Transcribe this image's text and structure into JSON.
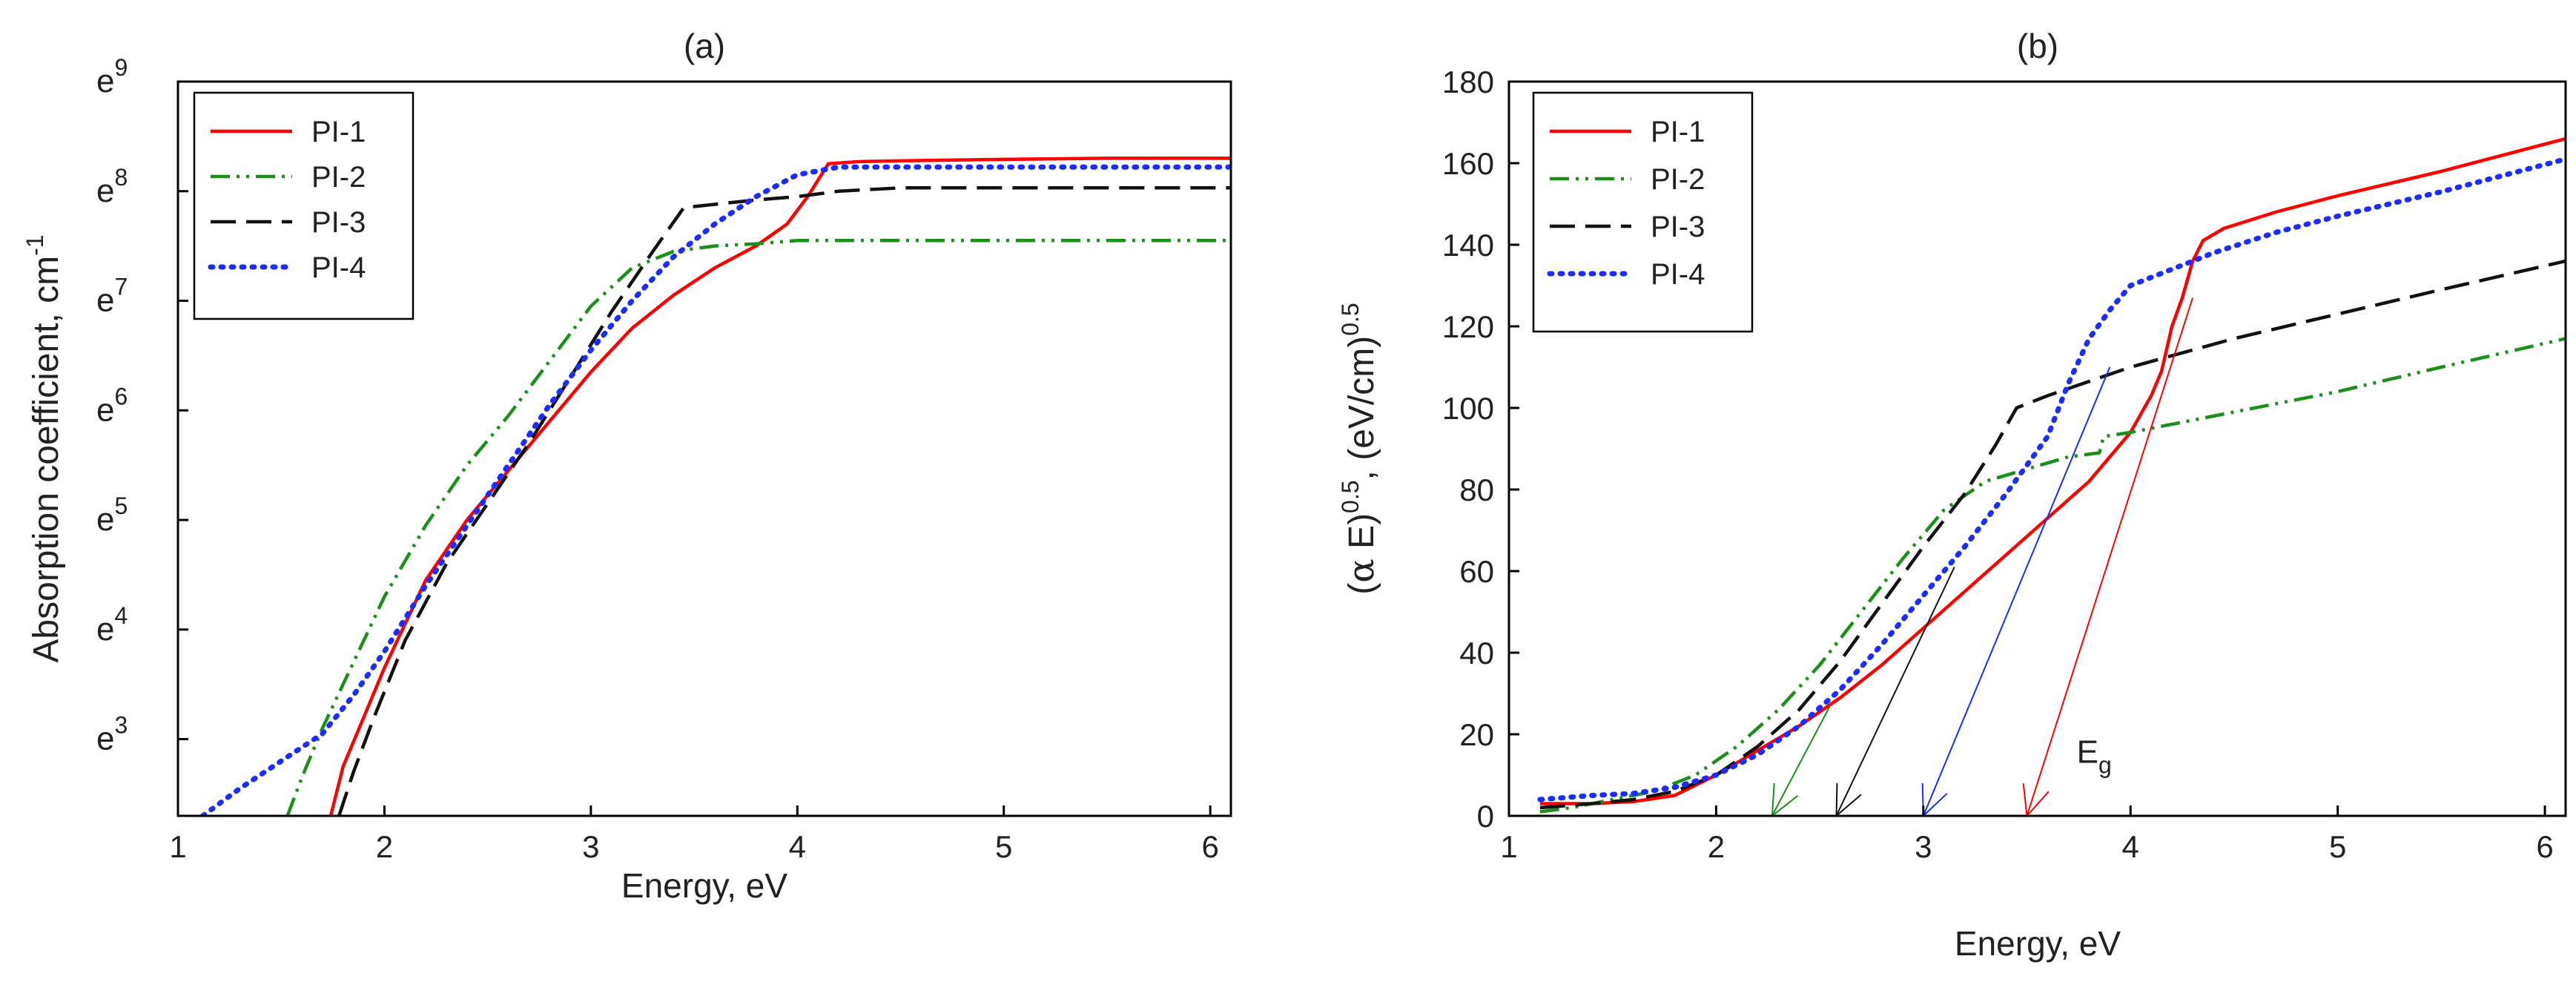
{
  "colors": {
    "pi1": "#ff0000",
    "pi2": "#1a8f1a",
    "pi3": "#111111",
    "pi4": "#1a2cff",
    "axis": "#000000"
  },
  "chart_data": [
    {
      "type": "line",
      "title": "(a)",
      "xlabel": "Energy, eV",
      "ylabel_main": "Absorption coefficient, cm",
      "ylabel_sup": "-1",
      "xlim": [
        1,
        6.1
      ],
      "ylim": [
        2.3,
        9
      ],
      "xticks": [
        1,
        2,
        3,
        4,
        5,
        6
      ],
      "xtick_labels": [
        "1",
        "2",
        "3",
        "4",
        "5",
        "6"
      ],
      "yticks": [
        3,
        4,
        5,
        6,
        7,
        8,
        9
      ],
      "ytick_base": "e",
      "ytick_exps": [
        "3",
        "4",
        "5",
        "6",
        "7",
        "8",
        "9"
      ],
      "legend_position": "top-left",
      "series": [
        {
          "name": "PI-1",
          "color_key": "pi1",
          "dash": "solid",
          "points": [
            [
              1.74,
              2.3
            ],
            [
              1.8,
              2.75
            ],
            [
              1.9,
              3.2
            ],
            [
              2.0,
              3.65
            ],
            [
              2.1,
              4.05
            ],
            [
              2.2,
              4.45
            ],
            [
              2.4,
              5.0
            ],
            [
              2.6,
              5.45
            ],
            [
              2.8,
              5.9
            ],
            [
              3.0,
              6.35
            ],
            [
              3.2,
              6.75
            ],
            [
              3.4,
              7.05
            ],
            [
              3.6,
              7.3
            ],
            [
              3.8,
              7.5
            ],
            [
              3.95,
              7.7
            ],
            [
              4.05,
              7.95
            ],
            [
              4.1,
              8.1
            ],
            [
              4.15,
              8.25
            ],
            [
              4.3,
              8.27
            ],
            [
              4.6,
              8.28
            ],
            [
              5.0,
              8.29
            ],
            [
              5.5,
              8.3
            ],
            [
              6.1,
              8.3
            ]
          ]
        },
        {
          "name": "PI-2",
          "color_key": "pi2",
          "dash": "dashdotdot",
          "points": [
            [
              1.53,
              2.3
            ],
            [
              1.6,
              2.65
            ],
            [
              1.7,
              3.1
            ],
            [
              1.8,
              3.5
            ],
            [
              1.9,
              3.9
            ],
            [
              2.0,
              4.3
            ],
            [
              2.2,
              4.95
            ],
            [
              2.4,
              5.5
            ],
            [
              2.6,
              5.95
            ],
            [
              2.8,
              6.45
            ],
            [
              3.0,
              6.95
            ],
            [
              3.2,
              7.3
            ],
            [
              3.4,
              7.45
            ],
            [
              3.6,
              7.5
            ],
            [
              3.8,
              7.52
            ],
            [
              4.0,
              7.55
            ],
            [
              4.2,
              7.55
            ],
            [
              4.5,
              7.55
            ],
            [
              5.0,
              7.55
            ],
            [
              6.1,
              7.55
            ]
          ]
        },
        {
          "name": "PI-3",
          "color_key": "pi3",
          "dash": "longdash",
          "points": [
            [
              1.78,
              2.3
            ],
            [
              1.85,
              2.7
            ],
            [
              1.95,
              3.2
            ],
            [
              2.1,
              3.9
            ],
            [
              2.3,
              4.6
            ],
            [
              2.5,
              5.15
            ],
            [
              2.7,
              5.7
            ],
            [
              2.9,
              6.3
            ],
            [
              3.1,
              6.9
            ],
            [
              3.3,
              7.45
            ],
            [
              3.45,
              7.85
            ],
            [
              3.6,
              7.88
            ],
            [
              3.8,
              7.92
            ],
            [
              4.0,
              7.95
            ],
            [
              4.2,
              8.0
            ],
            [
              4.5,
              8.03
            ],
            [
              5.0,
              8.03
            ],
            [
              5.5,
              8.03
            ],
            [
              6.1,
              8.03
            ]
          ]
        },
        {
          "name": "PI-4",
          "color_key": "pi4",
          "dash": "dotted",
          "points": [
            [
              1.12,
              2.3
            ],
            [
              1.3,
              2.55
            ],
            [
              1.5,
              2.8
            ],
            [
              1.7,
              3.05
            ],
            [
              1.85,
              3.4
            ],
            [
              2.0,
              3.8
            ],
            [
              2.2,
              4.4
            ],
            [
              2.4,
              4.95
            ],
            [
              2.6,
              5.5
            ],
            [
              2.8,
              6.05
            ],
            [
              3.0,
              6.55
            ],
            [
              3.2,
              7.0
            ],
            [
              3.4,
              7.4
            ],
            [
              3.6,
              7.7
            ],
            [
              3.8,
              7.95
            ],
            [
              4.0,
              8.15
            ],
            [
              4.2,
              8.22
            ],
            [
              4.5,
              8.22
            ],
            [
              5.0,
              8.22
            ],
            [
              6.1,
              8.22
            ]
          ]
        }
      ]
    },
    {
      "type": "line",
      "title": "(b)",
      "xlabel": "Energy, eV",
      "ylabel_alpha": "α",
      "ylabel_e": " E)",
      "ylabel_sup1": "0.5",
      "ylabel_mid": ", (eV/cm)",
      "ylabel_sup2": "0.5",
      "xlim": [
        1,
        6.1
      ],
      "ylim": [
        0,
        180
      ],
      "xticks": [
        1,
        2,
        3,
        4,
        5,
        6
      ],
      "xtick_labels": [
        "1",
        "2",
        "3",
        "4",
        "5",
        "6"
      ],
      "yticks": [
        0,
        20,
        40,
        60,
        80,
        100,
        120,
        140,
        160,
        180
      ],
      "ytick_labels": [
        "0",
        "20",
        "40",
        "60",
        "80",
        "100",
        "120",
        "140",
        "160",
        "180"
      ],
      "legend_position": "top-left",
      "annotation_base": "E",
      "annotation_sub": "g",
      "series": [
        {
          "name": "PI-1",
          "color_key": "pi1",
          "dash": "solid",
          "points": [
            [
              1.15,
              3
            ],
            [
              1.4,
              3
            ],
            [
              1.6,
              3.5
            ],
            [
              1.8,
              5
            ],
            [
              2.0,
              10
            ],
            [
              2.2,
              16
            ],
            [
              2.4,
              22
            ],
            [
              2.6,
              29
            ],
            [
              2.8,
              37
            ],
            [
              3.0,
              46
            ],
            [
              3.2,
              55
            ],
            [
              3.4,
              64
            ],
            [
              3.6,
              73
            ],
            [
              3.8,
              82
            ],
            [
              4.0,
              94
            ],
            [
              4.1,
              103
            ],
            [
              4.15,
              109
            ],
            [
              4.2,
              120
            ],
            [
              4.25,
              127
            ],
            [
              4.3,
              136
            ],
            [
              4.35,
              141
            ],
            [
              4.45,
              144
            ],
            [
              4.7,
              148
            ],
            [
              5.0,
              152
            ],
            [
              5.5,
              158
            ],
            [
              6.1,
              166
            ]
          ]
        },
        {
          "name": "PI-2",
          "color_key": "pi2",
          "dash": "dashdotdot",
          "points": [
            [
              1.15,
              1
            ],
            [
              1.3,
              2
            ],
            [
              1.5,
              4
            ],
            [
              1.7,
              6
            ],
            [
              1.9,
              10
            ],
            [
              2.1,
              17
            ],
            [
              2.3,
              26
            ],
            [
              2.5,
              37
            ],
            [
              2.7,
              50
            ],
            [
              2.9,
              63
            ],
            [
              3.1,
              75
            ],
            [
              3.3,
              82
            ],
            [
              3.5,
              85
            ],
            [
              3.7,
              88
            ],
            [
              3.85,
              89
            ],
            [
              3.87,
              93
            ],
            [
              4.0,
              94
            ],
            [
              4.5,
              99
            ],
            [
              5.0,
              104
            ],
            [
              5.5,
              110
            ],
            [
              6.1,
              117
            ]
          ]
        },
        {
          "name": "PI-3",
          "color_key": "pi3",
          "dash": "longdash",
          "points": [
            [
              1.15,
              2
            ],
            [
              1.4,
              3
            ],
            [
              1.6,
              4
            ],
            [
              1.8,
              6
            ],
            [
              2.0,
              10
            ],
            [
              2.2,
              17
            ],
            [
              2.4,
              26
            ],
            [
              2.6,
              38
            ],
            [
              2.8,
              52
            ],
            [
              3.0,
              66
            ],
            [
              3.2,
              79
            ],
            [
              3.35,
              91
            ],
            [
              3.45,
              100
            ],
            [
              3.6,
              103
            ],
            [
              4.0,
              110
            ],
            [
              4.5,
              117
            ],
            [
              5.0,
              123
            ],
            [
              5.5,
              129
            ],
            [
              6.1,
              136
            ]
          ]
        },
        {
          "name": "PI-4",
          "color_key": "pi4",
          "dash": "dotted",
          "points": [
            [
              1.15,
              4
            ],
            [
              1.4,
              5
            ],
            [
              1.6,
              5.5
            ],
            [
              1.8,
              7
            ],
            [
              2.0,
              10
            ],
            [
              2.2,
              15
            ],
            [
              2.4,
              22
            ],
            [
              2.6,
              31
            ],
            [
              2.8,
              42
            ],
            [
              3.0,
              54
            ],
            [
              3.2,
              66
            ],
            [
              3.4,
              79
            ],
            [
              3.6,
              93
            ],
            [
              3.7,
              106
            ],
            [
              3.8,
              117
            ],
            [
              3.9,
              124
            ],
            [
              4.0,
              130
            ],
            [
              4.2,
              134
            ],
            [
              4.4,
              138
            ],
            [
              4.7,
              143
            ],
            [
              5.0,
              147
            ],
            [
              5.5,
              153
            ],
            [
              6.1,
              161
            ]
          ]
        }
      ],
      "tangents": [
        {
          "name": "PI-2",
          "color_key": "pi2",
          "from": [
            2.55,
            27
          ],
          "to": [
            2.27,
            0
          ]
        },
        {
          "name": "PI-3",
          "color_key": "pi3",
          "from": [
            3.15,
            61
          ],
          "to": [
            2.58,
            0
          ]
        },
        {
          "name": "PI-4",
          "color_key": "pi4",
          "from": [
            3.9,
            110
          ],
          "to": [
            3.0,
            0
          ]
        },
        {
          "name": "PI-1",
          "color_key": "pi1",
          "from": [
            4.3,
            127
          ],
          "to": [
            3.5,
            0
          ]
        }
      ]
    }
  ]
}
